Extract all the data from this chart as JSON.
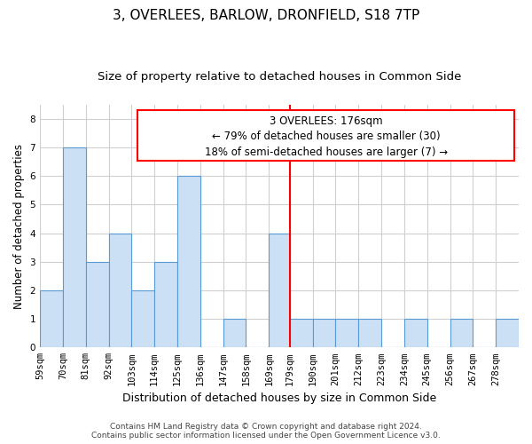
{
  "title": "3, OVERLEES, BARLOW, DRONFIELD, S18 7TP",
  "subtitle": "Size of property relative to detached houses in Common Side",
  "xlabel": "Distribution of detached houses by size in Common Side",
  "ylabel": "Number of detached properties",
  "footer_line1": "Contains HM Land Registry data © Crown copyright and database right 2024.",
  "footer_line2": "Contains public sector information licensed under the Open Government Licence v3.0.",
  "annotation_line1": "3 OVERLEES: 176sqm",
  "annotation_line2": "← 79% of detached houses are smaller (30)",
  "annotation_line3": "18% of semi-detached houses are larger (7) →",
  "vline_position": 179,
  "bar_color": "#cce0f5",
  "bar_edge_color": "#5b9bd5",
  "vline_color": "red",
  "grid_color": "#d0d0d0",
  "categories": [
    "59sqm",
    "70sqm",
    "81sqm",
    "92sqm",
    "103sqm",
    "114sqm",
    "125sqm",
    "136sqm",
    "147sqm",
    "158sqm",
    "169sqm",
    "179sqm",
    "190sqm",
    "201sqm",
    "212sqm",
    "223sqm",
    "234sqm",
    "245sqm",
    "256sqm",
    "267sqm",
    "278sqm"
  ],
  "bin_edges": [
    59,
    70,
    81,
    92,
    103,
    114,
    125,
    136,
    147,
    158,
    169,
    179,
    190,
    201,
    212,
    223,
    234,
    245,
    256,
    267,
    278,
    289
  ],
  "values": [
    2,
    7,
    3,
    4,
    2,
    3,
    6,
    0,
    1,
    0,
    4,
    1,
    1,
    1,
    1,
    0,
    1,
    0,
    1,
    0,
    1
  ],
  "ylim": [
    0,
    8.5
  ],
  "yticks": [
    0,
    1,
    2,
    3,
    4,
    5,
    6,
    7,
    8
  ],
  "title_fontsize": 11,
  "subtitle_fontsize": 9.5,
  "xlabel_fontsize": 9,
  "ylabel_fontsize": 8.5,
  "tick_fontsize": 7.5,
  "annotation_fontsize": 8.5,
  "footer_fontsize": 6.5
}
